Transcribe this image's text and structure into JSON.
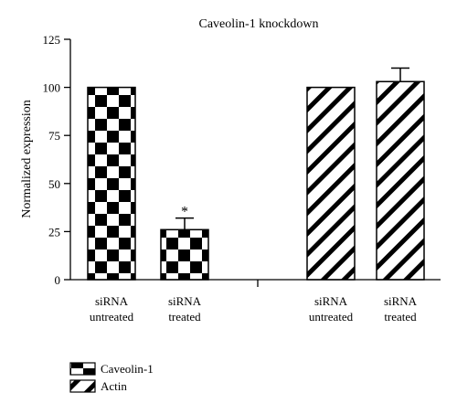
{
  "chart_data": {
    "type": "bar",
    "title": "Caveolin-1 knockdown",
    "xlabel": "",
    "ylabel": "Normalized expression",
    "ylim": [
      0,
      125
    ],
    "yticks": [
      0,
      25,
      50,
      75,
      100,
      125
    ],
    "grid": false,
    "legend_position": "bottom-left",
    "categories": [
      {
        "line1": "siRNA",
        "line2": "untreated"
      },
      {
        "line1": "siRNA",
        "line2": "treated"
      },
      {
        "line1": "siRNA",
        "line2": "untreated"
      },
      {
        "line1": "siRNA",
        "line2": "treated"
      }
    ],
    "series": [
      {
        "name": "Caveolin-1",
        "pattern": "checkerboard",
        "values": [
          100,
          26,
          null,
          null
        ],
        "errors": [
          0,
          6,
          null,
          null
        ]
      },
      {
        "name": "Actin",
        "pattern": "diagonal-stripes",
        "values": [
          null,
          null,
          100,
          103
        ],
        "errors": [
          null,
          null,
          0,
          7
        ]
      }
    ],
    "annotations": [
      {
        "text": "*",
        "category_index": 1
      }
    ]
  }
}
